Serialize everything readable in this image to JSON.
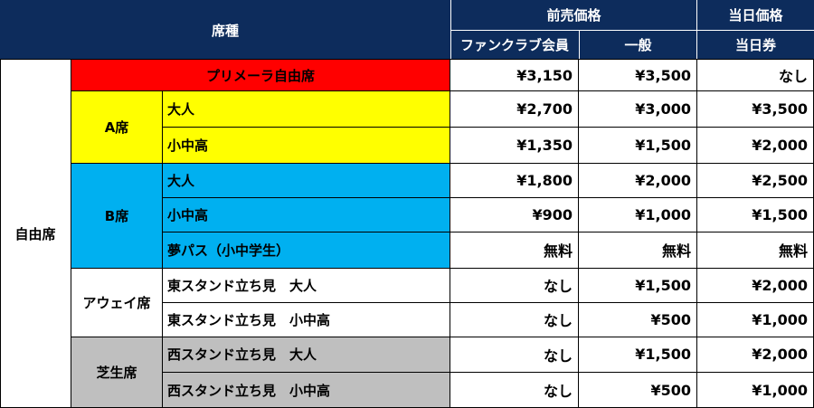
{
  "colors": {
    "header": "#0d2c5c",
    "primera": "#ff0000",
    "a_seat": "#ffff00",
    "b_seat": "#00b0f0",
    "lawn": "#bfbfbf"
  },
  "header": {
    "seat_type": "席種",
    "advance": "前売価格",
    "same_day": "当日価格",
    "fanclub": "ファンクラブ会員",
    "general": "一般",
    "same_day_ticket": "当日券"
  },
  "groups": {
    "free_seating": "自由席",
    "primera": "プリメーラ自由席",
    "a_seat": "A席",
    "b_seat": "B席",
    "away": "アウェイ席",
    "lawn": "芝生席"
  },
  "rows": [
    {
      "label": "",
      "fc": "¥3,150",
      "general": "¥3,500",
      "same_day": "なし"
    },
    {
      "label": "大人",
      "fc": "¥2,700",
      "general": "¥3,000",
      "same_day": "¥3,500"
    },
    {
      "label": "小中高",
      "fc": "¥1,350",
      "general": "¥1,500",
      "same_day": "¥2,000"
    },
    {
      "label": "大人",
      "fc": "¥1,800",
      "general": "¥2,000",
      "same_day": "¥2,500"
    },
    {
      "label": "小中高",
      "fc": "¥900",
      "general": "¥1,000",
      "same_day": "¥1,500"
    },
    {
      "label": "夢パス（小中学生）",
      "fc": "無料",
      "general": "無料",
      "same_day": "無料"
    },
    {
      "label": "東スタンド立ち見　大人",
      "fc": "なし",
      "general": "¥1,500",
      "same_day": "¥2,000"
    },
    {
      "label": "東スタンド立ち見　小中高",
      "fc": "なし",
      "general": "¥500",
      "same_day": "¥1,000"
    },
    {
      "label": "西スタンド立ち見　大人",
      "fc": "なし",
      "general": "¥1,500",
      "same_day": "¥2,000"
    },
    {
      "label": "西スタンド立ち見　小中高",
      "fc": "なし",
      "general": "¥500",
      "same_day": "¥1,000"
    }
  ]
}
